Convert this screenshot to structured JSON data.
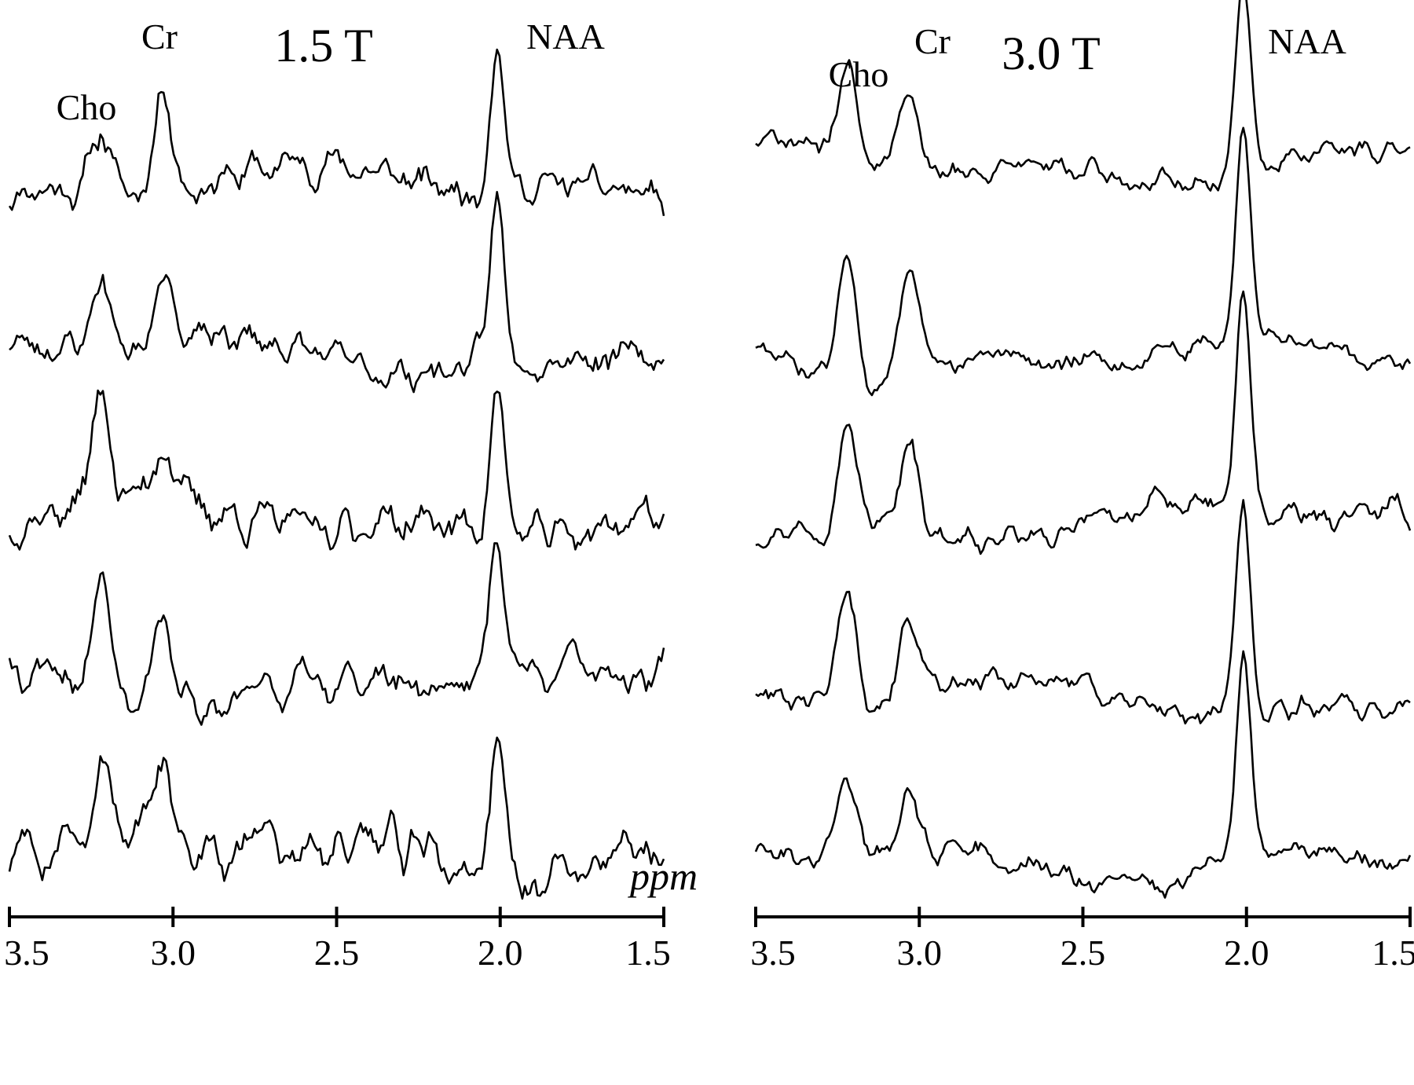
{
  "chart_data": [
    {
      "type": "line",
      "title": "1.5 T",
      "xlabel": "ppm",
      "xlim": [
        3.55,
        1.45
      ],
      "x_reversed": true,
      "xticks": [
        "3.5",
        "3.0",
        "2.5",
        "2.0",
        "1.5"
      ],
      "peak_labels": [
        {
          "text": "Cho",
          "ppm": 3.22
        },
        {
          "text": "Cr",
          "ppm": 3.03
        },
        {
          "text": "NAA",
          "ppm": 2.01
        }
      ],
      "color": "#000000",
      "series": [
        {
          "peaks": {
            "cho": 0.55,
            "cr": 0.95,
            "naa": 1.35
          },
          "noise": 0.22,
          "seed": 11
        },
        {
          "peaks": {
            "cho": 0.65,
            "cr": 0.75,
            "naa": 1.45
          },
          "noise": 0.2,
          "seed": 23
        },
        {
          "peaks": {
            "cho": 0.95,
            "cr": 0.55,
            "naa": 1.3
          },
          "noise": 0.25,
          "seed": 37
        },
        {
          "peaks": {
            "cho": 1.0,
            "cr": 0.7,
            "naa": 1.3
          },
          "noise": 0.22,
          "seed": 41
        },
        {
          "peaks": {
            "cho": 0.8,
            "cr": 0.8,
            "naa": 1.25
          },
          "noise": 0.28,
          "seed": 59
        }
      ]
    },
    {
      "type": "line",
      "title": "3.0 T",
      "xlabel": "",
      "xlim": [
        3.55,
        1.45
      ],
      "x_reversed": true,
      "xticks": [
        "3.5",
        "3.0",
        "2.5",
        "2.0",
        "1.5"
      ],
      "peak_labels": [
        {
          "text": "Cho",
          "ppm": 3.22
        },
        {
          "text": "Cr",
          "ppm": 3.03
        },
        {
          "text": "NAA",
          "ppm": 2.01
        }
      ],
      "color": "#000000",
      "series": [
        {
          "peaks": {
            "cho": 0.8,
            "cr": 0.7,
            "naa": 1.65
          },
          "noise": 0.13,
          "seed": 71
        },
        {
          "peaks": {
            "cho": 1.0,
            "cr": 0.95,
            "naa": 1.85
          },
          "noise": 0.13,
          "seed": 83
        },
        {
          "peaks": {
            "cho": 0.85,
            "cr": 0.8,
            "naa": 1.85
          },
          "noise": 0.14,
          "seed": 97
        },
        {
          "peaks": {
            "cho": 0.95,
            "cr": 0.7,
            "naa": 1.75
          },
          "noise": 0.14,
          "seed": 101
        },
        {
          "peaks": {
            "cho": 0.65,
            "cr": 0.6,
            "naa": 1.7
          },
          "noise": 0.13,
          "seed": 113
        }
      ]
    }
  ]
}
